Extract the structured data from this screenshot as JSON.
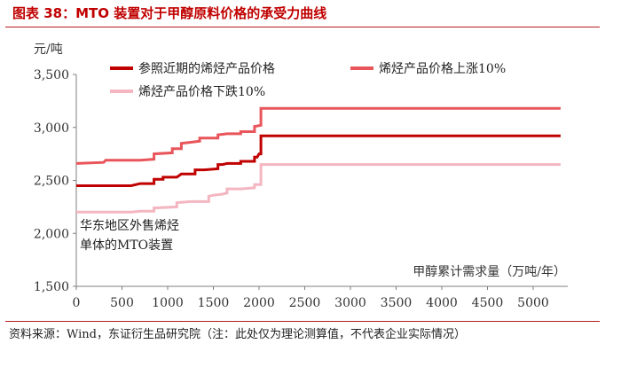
{
  "figure": {
    "title": "图表 38：MTO 装置对于甲醇原料价格的承受力曲线",
    "source": "资料来源：Wind，东证衍生品研究院（注：此处仅为理论测算值，不代表企业实际情况）"
  },
  "chart_data": {
    "type": "line",
    "ylabel": "元/吨",
    "xlabel": "甲醇累计需求量（万吨/年）",
    "xlim": [
      0,
      5350
    ],
    "ylim": [
      1500,
      3500
    ],
    "x_ticks": [
      0,
      500,
      1000,
      1500,
      2000,
      2500,
      3000,
      3500,
      4000,
      4500,
      5000
    ],
    "x_tick_labels": [
      "0",
      "500",
      "1000",
      "1500",
      "2000",
      "2500",
      "3000",
      "3500",
      "4000",
      "4500",
      "5000"
    ],
    "y_ticks": [
      1500,
      2000,
      2500,
      3000,
      3500
    ],
    "y_tick_labels": [
      "1,500",
      "2,000",
      "2,500",
      "3,000",
      "3,500"
    ],
    "grid": false,
    "legend_position": "top",
    "annotation": {
      "line1": "华东地区外售烯烃",
      "line2": "单体的MTO装置",
      "x": 0,
      "y": 2000
    },
    "series": [
      {
        "name": "参照近期的烯烃产品价格",
        "color": "#c00000",
        "stroke_width": 3,
        "points": [
          [
            0,
            2450
          ],
          [
            300,
            2450
          ],
          [
            600,
            2450
          ],
          [
            700,
            2470
          ],
          [
            850,
            2470
          ],
          [
            850,
            2510
          ],
          [
            950,
            2510
          ],
          [
            950,
            2530
          ],
          [
            1100,
            2530
          ],
          [
            1150,
            2560
          ],
          [
            1300,
            2560
          ],
          [
            1300,
            2600
          ],
          [
            1400,
            2600
          ],
          [
            1550,
            2610
          ],
          [
            1550,
            2650
          ],
          [
            1600,
            2650
          ],
          [
            1650,
            2660
          ],
          [
            1800,
            2660
          ],
          [
            1800,
            2680
          ],
          [
            1950,
            2680
          ],
          [
            1950,
            2720
          ],
          [
            1980,
            2720
          ],
          [
            2000,
            2750
          ],
          [
            2020,
            2750
          ],
          [
            2020,
            2920
          ],
          [
            5300,
            2920
          ]
        ]
      },
      {
        "name": "烯烃产品价格上涨10%",
        "color": "#e8555a",
        "stroke_width": 3,
        "points": [
          [
            0,
            2660
          ],
          [
            300,
            2670
          ],
          [
            320,
            2690
          ],
          [
            700,
            2690
          ],
          [
            850,
            2700
          ],
          [
            850,
            2750
          ],
          [
            1050,
            2760
          ],
          [
            1050,
            2800
          ],
          [
            1150,
            2800
          ],
          [
            1150,
            2850
          ],
          [
            1250,
            2860
          ],
          [
            1350,
            2870
          ],
          [
            1350,
            2900
          ],
          [
            1550,
            2900
          ],
          [
            1550,
            2930
          ],
          [
            1650,
            2940
          ],
          [
            1800,
            2940
          ],
          [
            1800,
            2960
          ],
          [
            1950,
            2960
          ],
          [
            1950,
            3010
          ],
          [
            2020,
            3020
          ],
          [
            2020,
            3180
          ],
          [
            5300,
            3180
          ]
        ]
      },
      {
        "name": "烯烃产品价格下跌10%",
        "color": "#f4b6c0",
        "stroke_width": 3,
        "points": [
          [
            0,
            2200
          ],
          [
            500,
            2200
          ],
          [
            600,
            2200
          ],
          [
            700,
            2210
          ],
          [
            850,
            2210
          ],
          [
            850,
            2240
          ],
          [
            1100,
            2250
          ],
          [
            1100,
            2290
          ],
          [
            1250,
            2300
          ],
          [
            1450,
            2300
          ],
          [
            1450,
            2350
          ],
          [
            1500,
            2360
          ],
          [
            1600,
            2370
          ],
          [
            1650,
            2380
          ],
          [
            1650,
            2420
          ],
          [
            1800,
            2420
          ],
          [
            1950,
            2430
          ],
          [
            1950,
            2460
          ],
          [
            2020,
            2460
          ],
          [
            2020,
            2650
          ],
          [
            5300,
            2650
          ]
        ]
      }
    ]
  }
}
